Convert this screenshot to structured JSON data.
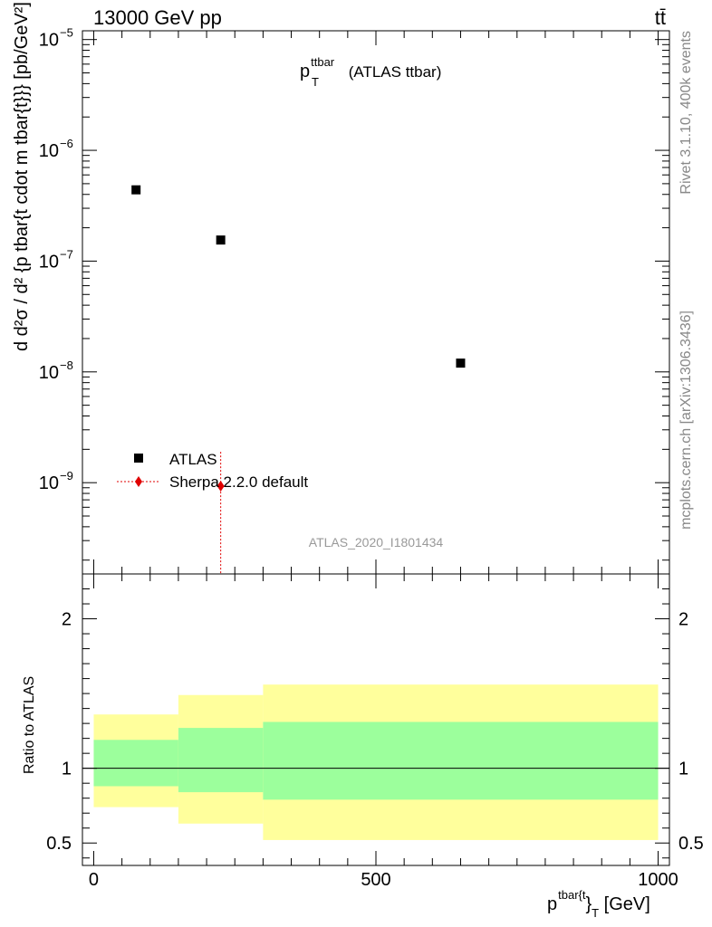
{
  "header": {
    "energy_label": "13000 GeV pp",
    "process_label": "tt̄",
    "rivet_label": "Rivet 3.1.10,  400k events",
    "source_label": "mcplots.cern.ch [arXiv:1306.3436]"
  },
  "chart_data": [
    {
      "type": "scatter",
      "panel": "main",
      "title_main": "p",
      "title_sub": "T",
      "title_sup": "ttbar",
      "title_suffix": " (ATLAS ttbar)",
      "ylabel": "d²σⁿᶠᵈ/d²{pᵗᵇᵃʳ{ᵗ}} cdot mᵗᵇᵃʳ{ᵗ}}} [pb/GeV²]",
      "ylabel_plain": "d d²σ / d² {p tbar{t cdot m tbar{t}}} [pb/GeV²]",
      "yscale": "log",
      "ylim": [
        1.5e-10,
        1.2e-05
      ],
      "xlim": [
        -20,
        1020
      ],
      "y_ticks": [
        {
          "value": 1e-09,
          "label": "10",
          "exp": "−9"
        },
        {
          "value": 1e-08,
          "label": "10",
          "exp": "−8"
        },
        {
          "value": 1e-07,
          "label": "10",
          "exp": "−7"
        },
        {
          "value": 1e-06,
          "label": "10",
          "exp": "−6"
        },
        {
          "value": 1e-05,
          "label": "10",
          "exp": "−5"
        }
      ],
      "series": [
        {
          "name": "ATLAS",
          "marker": "square",
          "color": "#000000",
          "points": [
            {
              "x": 75,
              "y": 4.4e-07
            },
            {
              "x": 225,
              "y": 1.55e-07
            },
            {
              "x": 650,
              "y": 1.2e-08
            }
          ]
        },
        {
          "name": "Sherpa 2.2.0 default",
          "marker": "diamond",
          "color": "#e00000",
          "points": [
            {
              "x": 225,
              "y": 9.3e-10,
              "ylow": 1e-10,
              "yhigh": 1.9e-09
            }
          ]
        }
      ],
      "legend": "lower-left",
      "watermark": "ATLAS_2020_I1801434"
    },
    {
      "type": "area",
      "panel": "ratio",
      "ylabel": "Ratio to ATLAS",
      "ylim": [
        0.35,
        2.3
      ],
      "xlim": [
        -20,
        1020
      ],
      "y_ticks": [
        {
          "value": 0.5,
          "label": "0.5"
        },
        {
          "value": 1,
          "label": "1"
        },
        {
          "value": 2,
          "label": "2"
        }
      ],
      "x_ticks": [
        {
          "value": 0,
          "label": "0"
        },
        {
          "value": 500,
          "label": "500"
        },
        {
          "value": 1000,
          "label": "1000"
        }
      ],
      "xlabel": "p tbar{t}T [GeV]",
      "xlabel_main": "p",
      "xlabel_sup": "tbar{t",
      "xlabel_brace": "}",
      "xlabel_sub": "T",
      "xlabel_unit": " [GeV]",
      "reference_line": 1,
      "bands": [
        {
          "x0": 0,
          "x1": 150,
          "stat_low": 0.88,
          "stat_high": 1.19,
          "tot_low": 0.74,
          "tot_high": 1.36
        },
        {
          "x0": 150,
          "x1": 300,
          "stat_low": 0.84,
          "stat_high": 1.27,
          "tot_low": 0.63,
          "tot_high": 1.49
        },
        {
          "x0": 300,
          "x1": 1000,
          "stat_low": 0.79,
          "stat_high": 1.31,
          "tot_low": 0.52,
          "tot_high": 1.56
        }
      ],
      "colors": {
        "stat": "#9cff9c",
        "tot": "#ffff9c"
      }
    }
  ]
}
